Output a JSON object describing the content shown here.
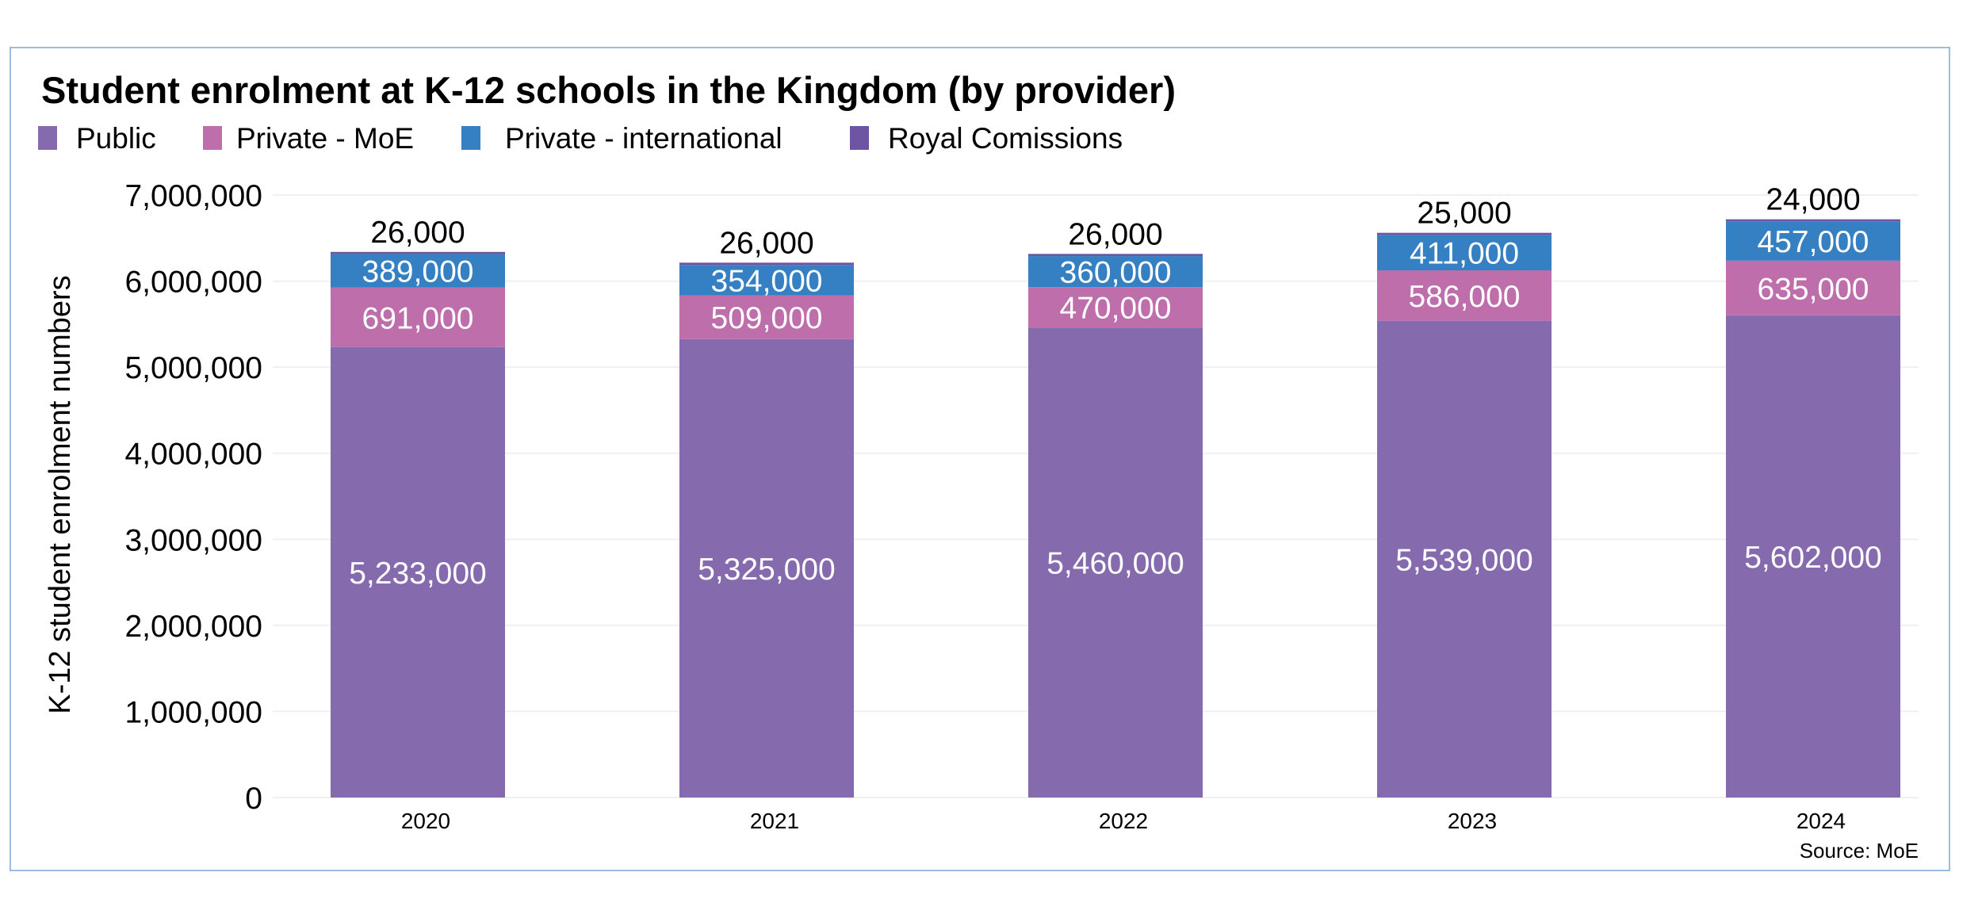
{
  "chart_data": {
    "type": "bar",
    "stacked": true,
    "title": "Student enrolment at K-12 schools in the Kingdom (by provider)",
    "ylabel": "K-12 student enrolment numbers",
    "xlabel": "",
    "source": "Source: MoE",
    "ylim": [
      0,
      7000000
    ],
    "yticks": [
      0,
      1000000,
      2000000,
      3000000,
      4000000,
      5000000,
      6000000,
      7000000
    ],
    "ytick_labels": [
      "0",
      "1,000,000",
      "2,000,000",
      "3,000,000",
      "4,000,000",
      "5,000,000",
      "6,000,000",
      "7,000,000"
    ],
    "grid": true,
    "legend_position": "top-left",
    "categories": [
      "2020",
      "2021",
      "2022",
      "2023",
      "2024"
    ],
    "series": [
      {
        "name": "Public",
        "color": "#856bae",
        "label_color": "#ffffff",
        "values": [
          5233000,
          5325000,
          5460000,
          5539000,
          5602000
        ],
        "labels": [
          "5,233,000",
          "5,325,000",
          "5,460,000",
          "5,539,000",
          "5,602,000"
        ]
      },
      {
        "name": "Private - MoE",
        "color": "#be6fab",
        "label_color": "#ffffff",
        "values": [
          691000,
          509000,
          470000,
          586000,
          635000
        ],
        "labels": [
          "691,000",
          "509,000",
          "470,000",
          "586,000",
          "635,000"
        ]
      },
      {
        "name": "Private - international",
        "color": "#3580c3",
        "label_color": "#ffffff",
        "values": [
          389000,
          354000,
          360000,
          411000,
          457000
        ],
        "labels": [
          "389,000",
          "354,000",
          "360,000",
          "411,000",
          "457,000"
        ]
      },
      {
        "name": "Royal Comissions",
        "color": "#6e55a3",
        "label_color": "#000000",
        "values": [
          26000,
          26000,
          26000,
          25000,
          24000
        ],
        "labels": [
          "26,000",
          "26,000",
          "26,000",
          "25,000",
          "24,000"
        ]
      }
    ]
  }
}
